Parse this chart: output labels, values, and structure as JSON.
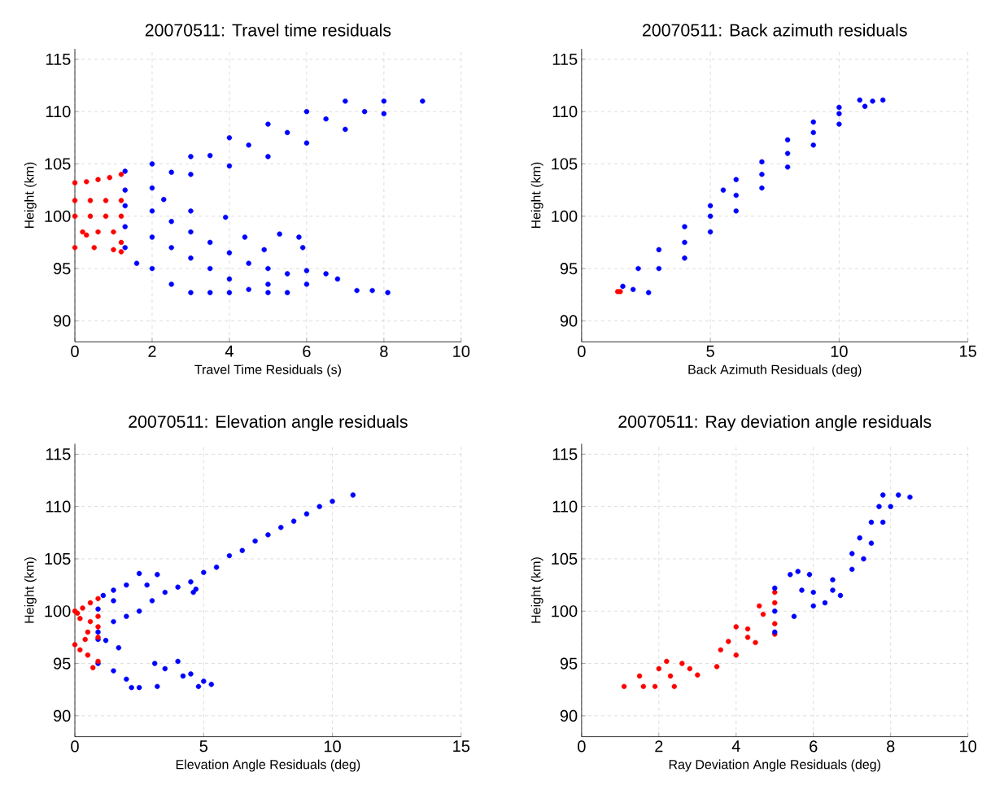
{
  "chart_data": [
    {
      "type": "scatter",
      "title": "20070511: Travel time residuals",
      "xlabel": "Travel Time Residuals (s)",
      "ylabel": "Height (km)",
      "xlim": [
        0,
        10
      ],
      "ylim": [
        88,
        116
      ],
      "xticks": [
        0,
        2,
        4,
        6,
        8,
        10
      ],
      "yticks": [
        90,
        95,
        100,
        105,
        110,
        115
      ],
      "grid": true,
      "marker": "circle",
      "series": [
        {
          "color": "#ff0000",
          "x": [
            0,
            0.3,
            0.6,
            0.9,
            1.2,
            0,
            0.4,
            0.8,
            1.2,
            0,
            0.4,
            0.8,
            1.2,
            0.2,
            0.6,
            1.0,
            1.2,
            0,
            0.5,
            1.0,
            1.2,
            0.3
          ],
          "values": [
            103.2,
            103.3,
            103.5,
            103.7,
            104,
            101.5,
            101.5,
            101.5,
            101.5,
            100,
            100,
            100,
            100,
            98.5,
            98.5,
            98.5,
            97.5,
            97,
            97,
            96.8,
            96.6,
            98.2
          ]
        },
        {
          "color": "#0000ff",
          "x": [
            1.3,
            1.3,
            2,
            2,
            3,
            3,
            4,
            4,
            5,
            5,
            6,
            6,
            7,
            7,
            8,
            8,
            9,
            7.5,
            2.5,
            3.5,
            4.5,
            5.5,
            6.5,
            1.3,
            1.3,
            1.3,
            1.6,
            2,
            2,
            2,
            2.5,
            2.5,
            2.5,
            3,
            3,
            3,
            3,
            3.5,
            3.5,
            3.5,
            4,
            4,
            4,
            4.5,
            4.5,
            5,
            5,
            5,
            5.5,
            5.5,
            6,
            6,
            6.5,
            6.8,
            7.3,
            7.7,
            8.1,
            5.8,
            5.9,
            4.4,
            5.3,
            4.9,
            3.9,
            2.3
          ],
          "values": [
            104.3,
            102.5,
            105,
            102.7,
            105.7,
            104,
            107.5,
            104.8,
            108.8,
            105.7,
            110,
            107,
            111,
            108.3,
            111,
            109.8,
            111,
            110,
            104.2,
            105.8,
            106.8,
            108,
            109.3,
            101,
            99,
            97,
            95.5,
            100.5,
            98,
            95,
            99.5,
            97,
            93.5,
            100.5,
            98.5,
            96,
            92.7,
            97.5,
            95,
            92.7,
            96.5,
            94,
            92.7,
            95.5,
            93,
            95,
            93.5,
            92.7,
            94.5,
            92.7,
            94.8,
            93.5,
            94.5,
            94,
            92.9,
            92.9,
            92.7,
            98,
            97,
            98,
            98.3,
            96.8,
            99.9,
            101.6
          ]
        }
      ]
    },
    {
      "type": "scatter",
      "title": "20070511: Back azimuth residuals",
      "xlabel": "Back Azimuth Residuals (deg)",
      "ylabel": "Height (km)",
      "xlim": [
        0,
        15
      ],
      "ylim": [
        88,
        116
      ],
      "xticks": [
        0,
        5,
        10,
        15
      ],
      "yticks": [
        90,
        95,
        100,
        105,
        110,
        115
      ],
      "grid": true,
      "marker": "circle",
      "series": [
        {
          "color": "#0000ff",
          "x": [
            2.6,
            4,
            5,
            6,
            7,
            8,
            9,
            10,
            11,
            11.7,
            1.6,
            2.2,
            3,
            4,
            5,
            5.5,
            6,
            7,
            8,
            9,
            10,
            10.8,
            2,
            3,
            4,
            5,
            6,
            7,
            8,
            9,
            10,
            11.3
          ],
          "values": [
            92.7,
            96,
            98.5,
            100.5,
            102.7,
            104.7,
            106.8,
            108.8,
            110.5,
            111.1,
            93.3,
            95,
            96.8,
            99,
            101,
            102.5,
            103.5,
            105.2,
            107.3,
            109,
            110.4,
            111.1,
            93,
            95,
            97.5,
            100,
            102,
            104,
            106,
            108,
            109.8,
            111
          ]
        },
        {
          "color": "#ff0000",
          "x": [
            1.4,
            1.5
          ],
          "values": [
            92.8,
            92.8
          ]
        }
      ]
    },
    {
      "type": "scatter",
      "title": "20070511: Elevation angle residuals",
      "xlabel": "Elevation Angle Residuals (deg)",
      "ylabel": "Height (km)",
      "xlim": [
        0,
        15
      ],
      "ylim": [
        88,
        116
      ],
      "xticks": [
        0,
        5,
        10,
        15
      ],
      "yticks": [
        90,
        95,
        100,
        105,
        110,
        115
      ],
      "grid": true,
      "marker": "circle",
      "series": [
        {
          "color": "#0000ff",
          "x": [
            0.9,
            0.9,
            2,
            3,
            4,
            5,
            6,
            7,
            8,
            9,
            10,
            10.8,
            1.5,
            2.5,
            3.5,
            4.5,
            5.5,
            6.5,
            7.5,
            8.5,
            9.5,
            1.2,
            1.7,
            1.1,
            0.9,
            1.5,
            2,
            2.5,
            3.2,
            2.8,
            1.5,
            4.6,
            4.7,
            0.9,
            1.5,
            2,
            2.5,
            3.2,
            2.2,
            3.1,
            3.5,
            4,
            4.5,
            5,
            5.3,
            4.8,
            4.2
          ],
          "values": [
            98,
            97.3,
            99.5,
            101,
            102.3,
            103.7,
            105.3,
            106.7,
            108,
            109.3,
            110.5,
            111.1,
            99,
            100,
            101.8,
            102.8,
            104.2,
            105.8,
            107.3,
            108.6,
            110,
            97.2,
            96.5,
            101.5,
            100.2,
            102,
            102.5,
            103.6,
            103.5,
            102.5,
            101,
            101.8,
            102.1,
            95,
            94.3,
            93.5,
            92.7,
            92.8,
            92.7,
            95,
            94.5,
            95.2,
            94,
            93.3,
            93,
            92.8,
            93.8
          ]
        },
        {
          "color": "#ff0000",
          "x": [
            0,
            0.3,
            0.6,
            0.9,
            0.2,
            0.6,
            0.9,
            0.5,
            0.9,
            0,
            0.2,
            0.5,
            0.9,
            0.7,
            0.4,
            0.1,
            0.9
          ],
          "values": [
            100,
            100.3,
            100.8,
            101.2,
            99.3,
            99,
            98.5,
            98,
            97.5,
            96.8,
            96.3,
            95.8,
            95.2,
            94.6,
            97.3,
            99.8,
            99.5
          ]
        }
      ]
    },
    {
      "type": "scatter",
      "title": "20070511: Ray deviation angle residuals",
      "xlabel": "Ray Deviation Angle Residuals (deg)",
      "ylabel": "Height (km)",
      "xlim": [
        0,
        10
      ],
      "ylim": [
        88,
        116
      ],
      "xticks": [
        0,
        2,
        4,
        6,
        8,
        10
      ],
      "yticks": [
        90,
        95,
        100,
        105,
        110,
        115
      ],
      "grid": true,
      "marker": "circle",
      "series": [
        {
          "color": "#ff0000",
          "x": [
            1.1,
            1.5,
            1.6,
            2,
            2.2,
            2.6,
            2.3,
            1.9,
            2.4,
            3,
            3.5,
            4,
            4.5,
            5,
            5,
            4.3,
            3.6,
            3.8,
            4.3,
            4.7,
            5,
            5,
            4.6,
            4,
            2.8
          ],
          "values": [
            92.8,
            93.8,
            92.8,
            94.5,
            95.2,
            95,
            93.8,
            92.8,
            92.8,
            93.9,
            94.7,
            95.8,
            97,
            97.8,
            98.8,
            97.5,
            96.3,
            97.1,
            98.3,
            99.7,
            100.8,
            101.8,
            100.5,
            98.5,
            94.5
          ]
        },
        {
          "color": "#0000ff",
          "x": [
            5,
            5,
            5,
            5.4,
            5.6,
            5.9,
            5.7,
            5.5,
            6,
            6,
            6.5,
            6.7,
            6.5,
            7,
            7,
            7.3,
            7.2,
            7.5,
            7.5,
            7.8,
            7.7,
            8,
            7.8,
            8.2,
            8.5,
            6.3
          ],
          "values": [
            102.2,
            100,
            98,
            103.5,
            103.8,
            103.5,
            102,
            99.5,
            100.5,
            101.8,
            102,
            101.5,
            103,
            104,
            105.5,
            105,
            107,
            106.5,
            108.5,
            108.5,
            110,
            110,
            111.1,
            111.1,
            110.9,
            100.8
          ]
        }
      ]
    }
  ]
}
